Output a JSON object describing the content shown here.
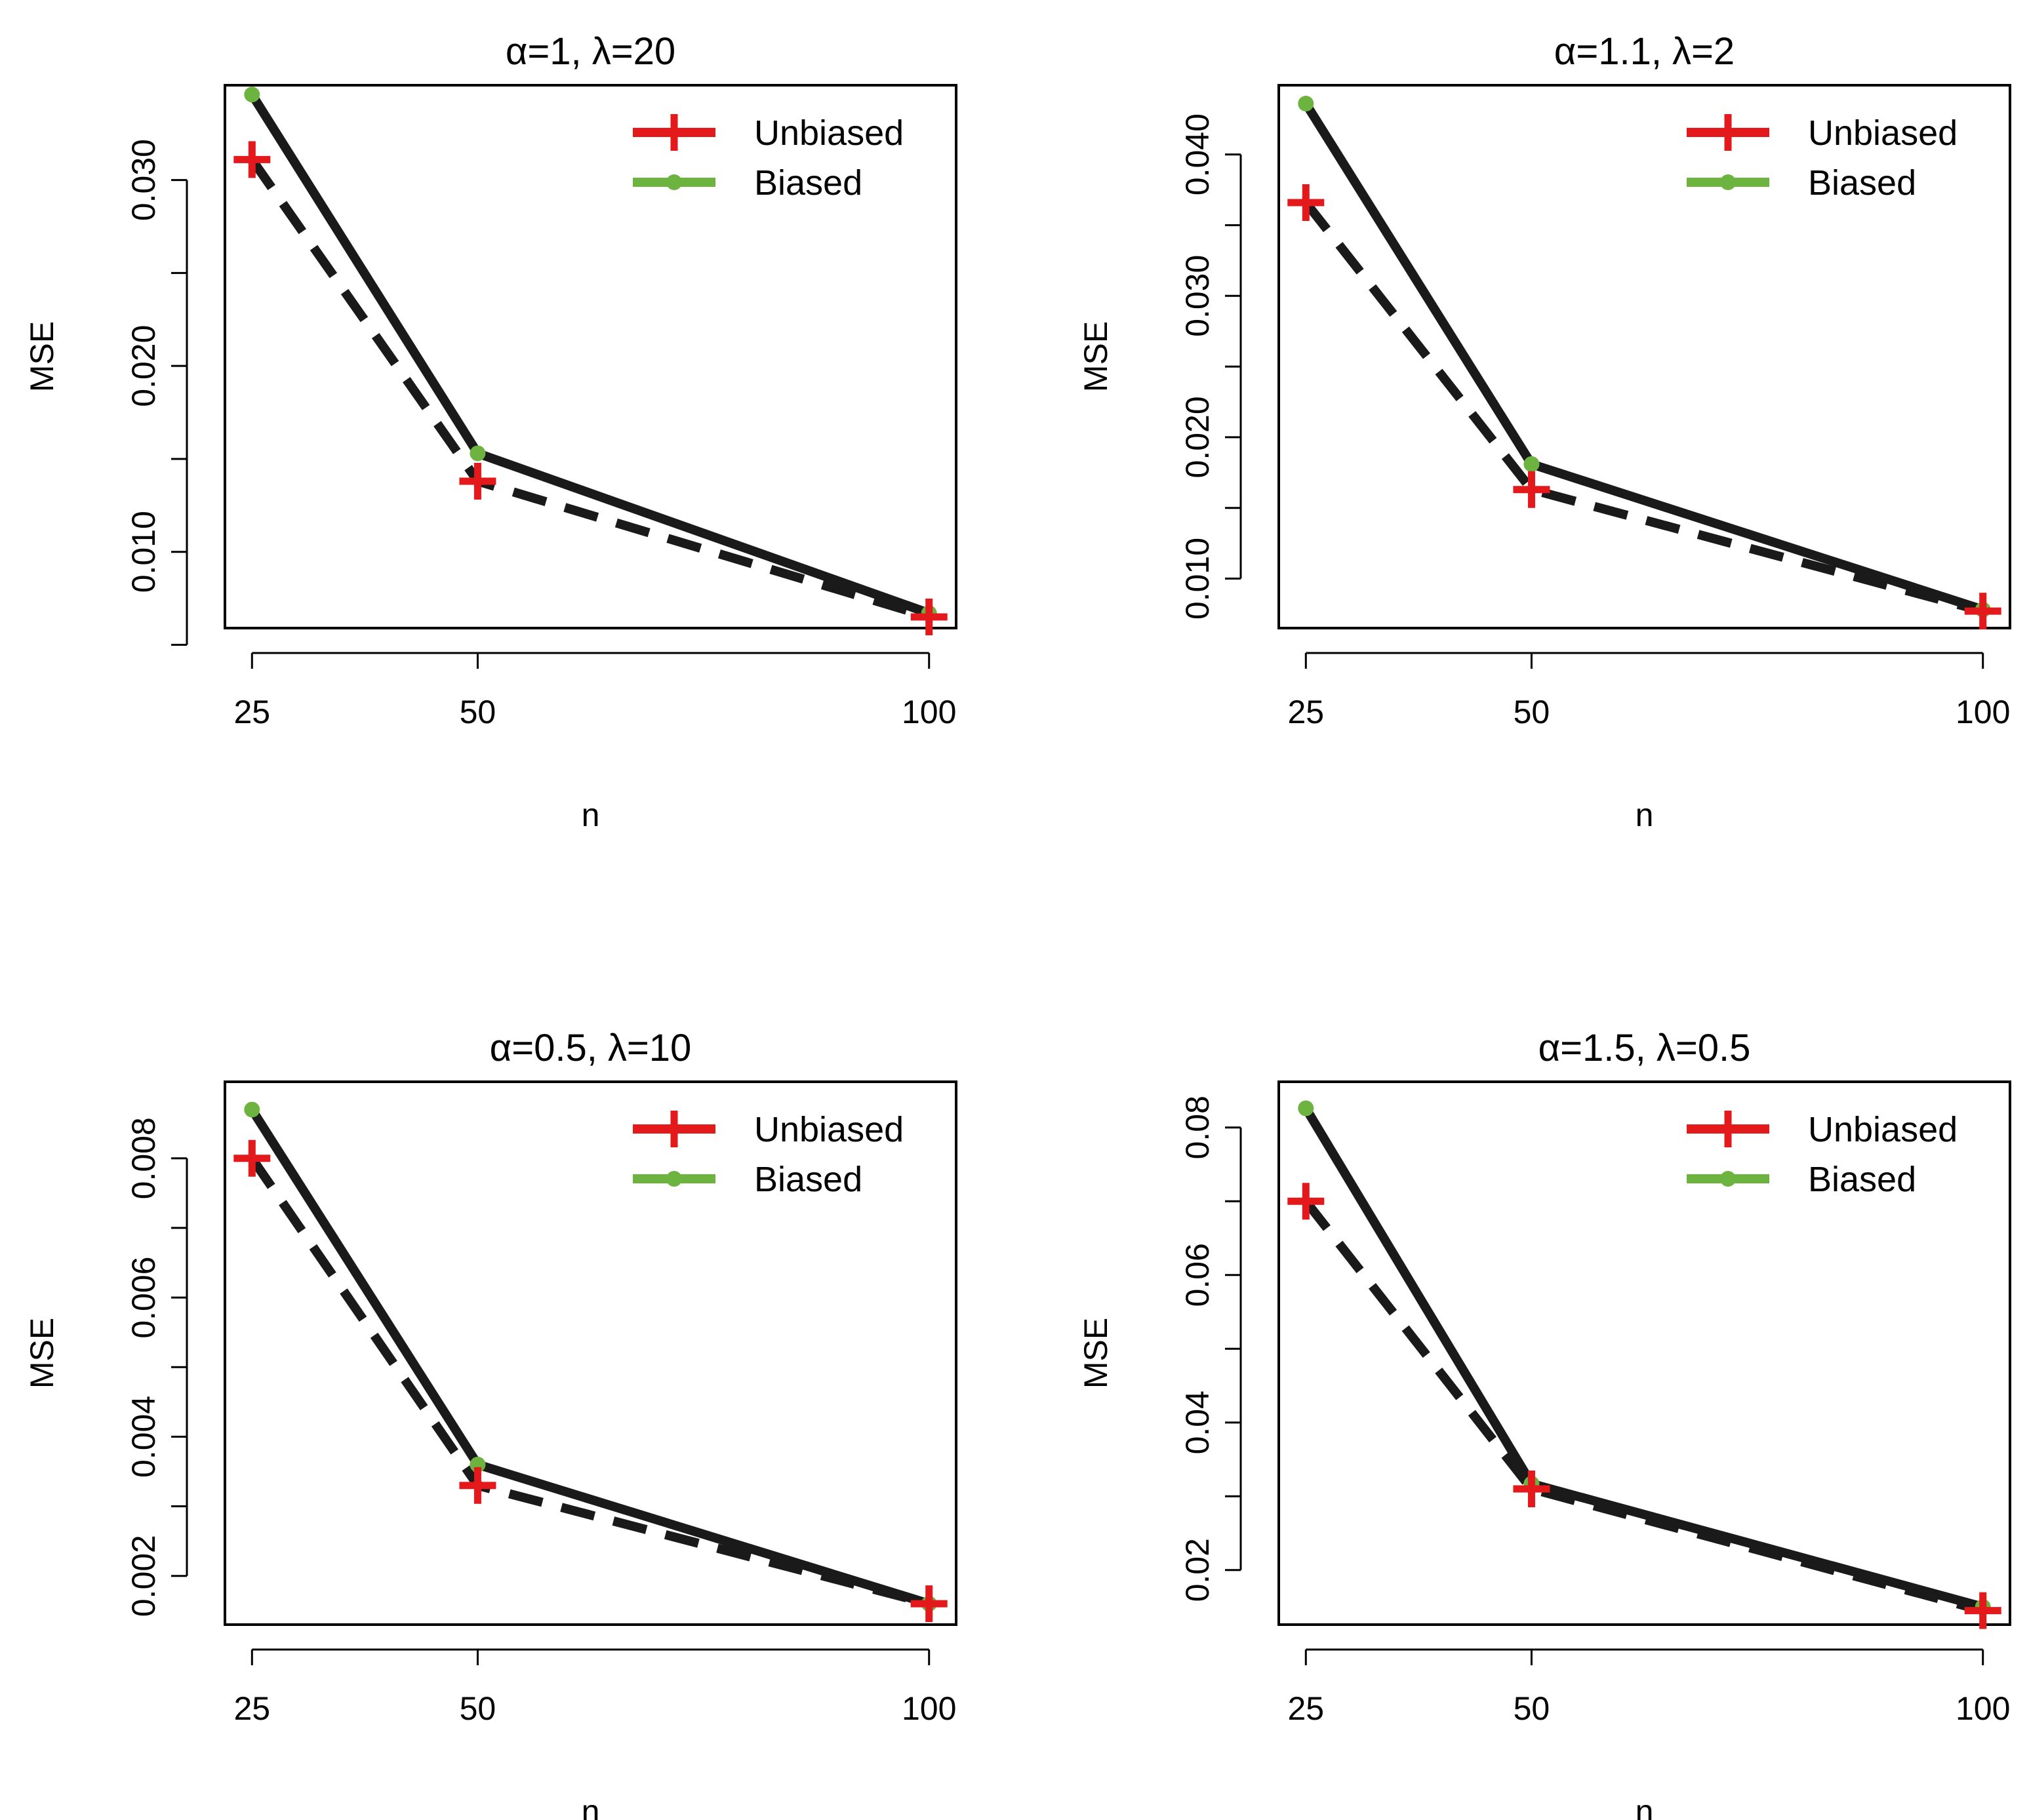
{
  "figure": {
    "series_names": [
      "Unbiased",
      "Biased"
    ],
    "colors": {
      "unbiased_marker": "#e3191c",
      "biased_marker": "#6cb33f",
      "line": "#1a1a1a",
      "frame": "#000000"
    }
  },
  "chart_data": [
    {
      "type": "line",
      "title": "α=1, λ=20",
      "xlabel": "n",
      "ylabel": "MSE",
      "x": [
        25,
        50,
        100
      ],
      "xlim": [
        22,
        103
      ],
      "xticks": [
        25,
        50,
        100
      ],
      "xtick_labels": [
        "25",
        "50",
        "100"
      ],
      "ylim": [
        0.0059,
        0.0351
      ],
      "yticks": [
        0.005,
        0.01,
        0.015,
        0.02,
        0.025,
        0.03
      ],
      "ytick_labels": [
        "",
        "0.010",
        "",
        "0.020",
        "",
        "0.030"
      ],
      "legend": "top-right",
      "series": [
        {
          "name": "Unbiased",
          "values": [
            0.0311,
            0.0138,
            0.0065
          ]
        },
        {
          "name": "Biased",
          "values": [
            0.0346,
            0.0153,
            0.0067
          ]
        }
      ]
    },
    {
      "type": "line",
      "title": "α=1.1, λ=2",
      "xlabel": "n",
      "ylabel": "MSE",
      "x": [
        25,
        50,
        100
      ],
      "xlim": [
        22,
        103
      ],
      "xticks": [
        25,
        50,
        100
      ],
      "xtick_labels": [
        "25",
        "50",
        "100"
      ],
      "ylim": [
        0.0065,
        0.0449
      ],
      "yticks": [
        0.01,
        0.015,
        0.02,
        0.025,
        0.03,
        0.035,
        0.04
      ],
      "ytick_labels": [
        "0.010",
        "",
        "0.020",
        "",
        "0.030",
        "",
        "0.040"
      ],
      "legend": "top-right",
      "series": [
        {
          "name": "Unbiased",
          "values": [
            0.0366,
            0.0163,
            0.0077
          ]
        },
        {
          "name": "Biased",
          "values": [
            0.0436,
            0.0181,
            0.0078
          ]
        }
      ]
    },
    {
      "type": "line",
      "title": "α=0.5, λ=10",
      "xlabel": "n",
      "ylabel": "MSE",
      "x": [
        25,
        50,
        100
      ],
      "xlim": [
        22,
        103
      ],
      "xticks": [
        25,
        50,
        100
      ],
      "xtick_labels": [
        "25",
        "50",
        "100"
      ],
      "ylim": [
        0.0013,
        0.0091
      ],
      "yticks": [
        0.002,
        0.003,
        0.004,
        0.005,
        0.006,
        0.007,
        0.008
      ],
      "ytick_labels": [
        "0.002",
        "",
        "0.004",
        "",
        "0.006",
        "",
        "0.008"
      ],
      "legend": "top-right",
      "series": [
        {
          "name": "Unbiased",
          "values": [
            0.008,
            0.0033,
            0.0016
          ]
        },
        {
          "name": "Biased",
          "values": [
            0.0087,
            0.0036,
            0.0016
          ]
        }
      ]
    },
    {
      "type": "line",
      "title": "α=1.5, λ=0.5",
      "xlabel": "n",
      "ylabel": "MSE",
      "x": [
        25,
        50,
        100
      ],
      "xlim": [
        22,
        103
      ],
      "xticks": [
        25,
        50,
        100
      ],
      "xtick_labels": [
        "25",
        "50",
        "100"
      ],
      "ylim": [
        0.0126,
        0.0862
      ],
      "yticks": [
        0.02,
        0.03,
        0.04,
        0.05,
        0.06,
        0.07,
        0.08
      ],
      "ytick_labels": [
        "0.02",
        "",
        "0.04",
        "",
        "0.06",
        "",
        "0.08"
      ],
      "legend": "top-right",
      "series": [
        {
          "name": "Unbiased",
          "values": [
            0.07,
            0.031,
            0.0145
          ]
        },
        {
          "name": "Biased",
          "values": [
            0.0826,
            0.0317,
            0.015
          ]
        }
      ]
    }
  ]
}
